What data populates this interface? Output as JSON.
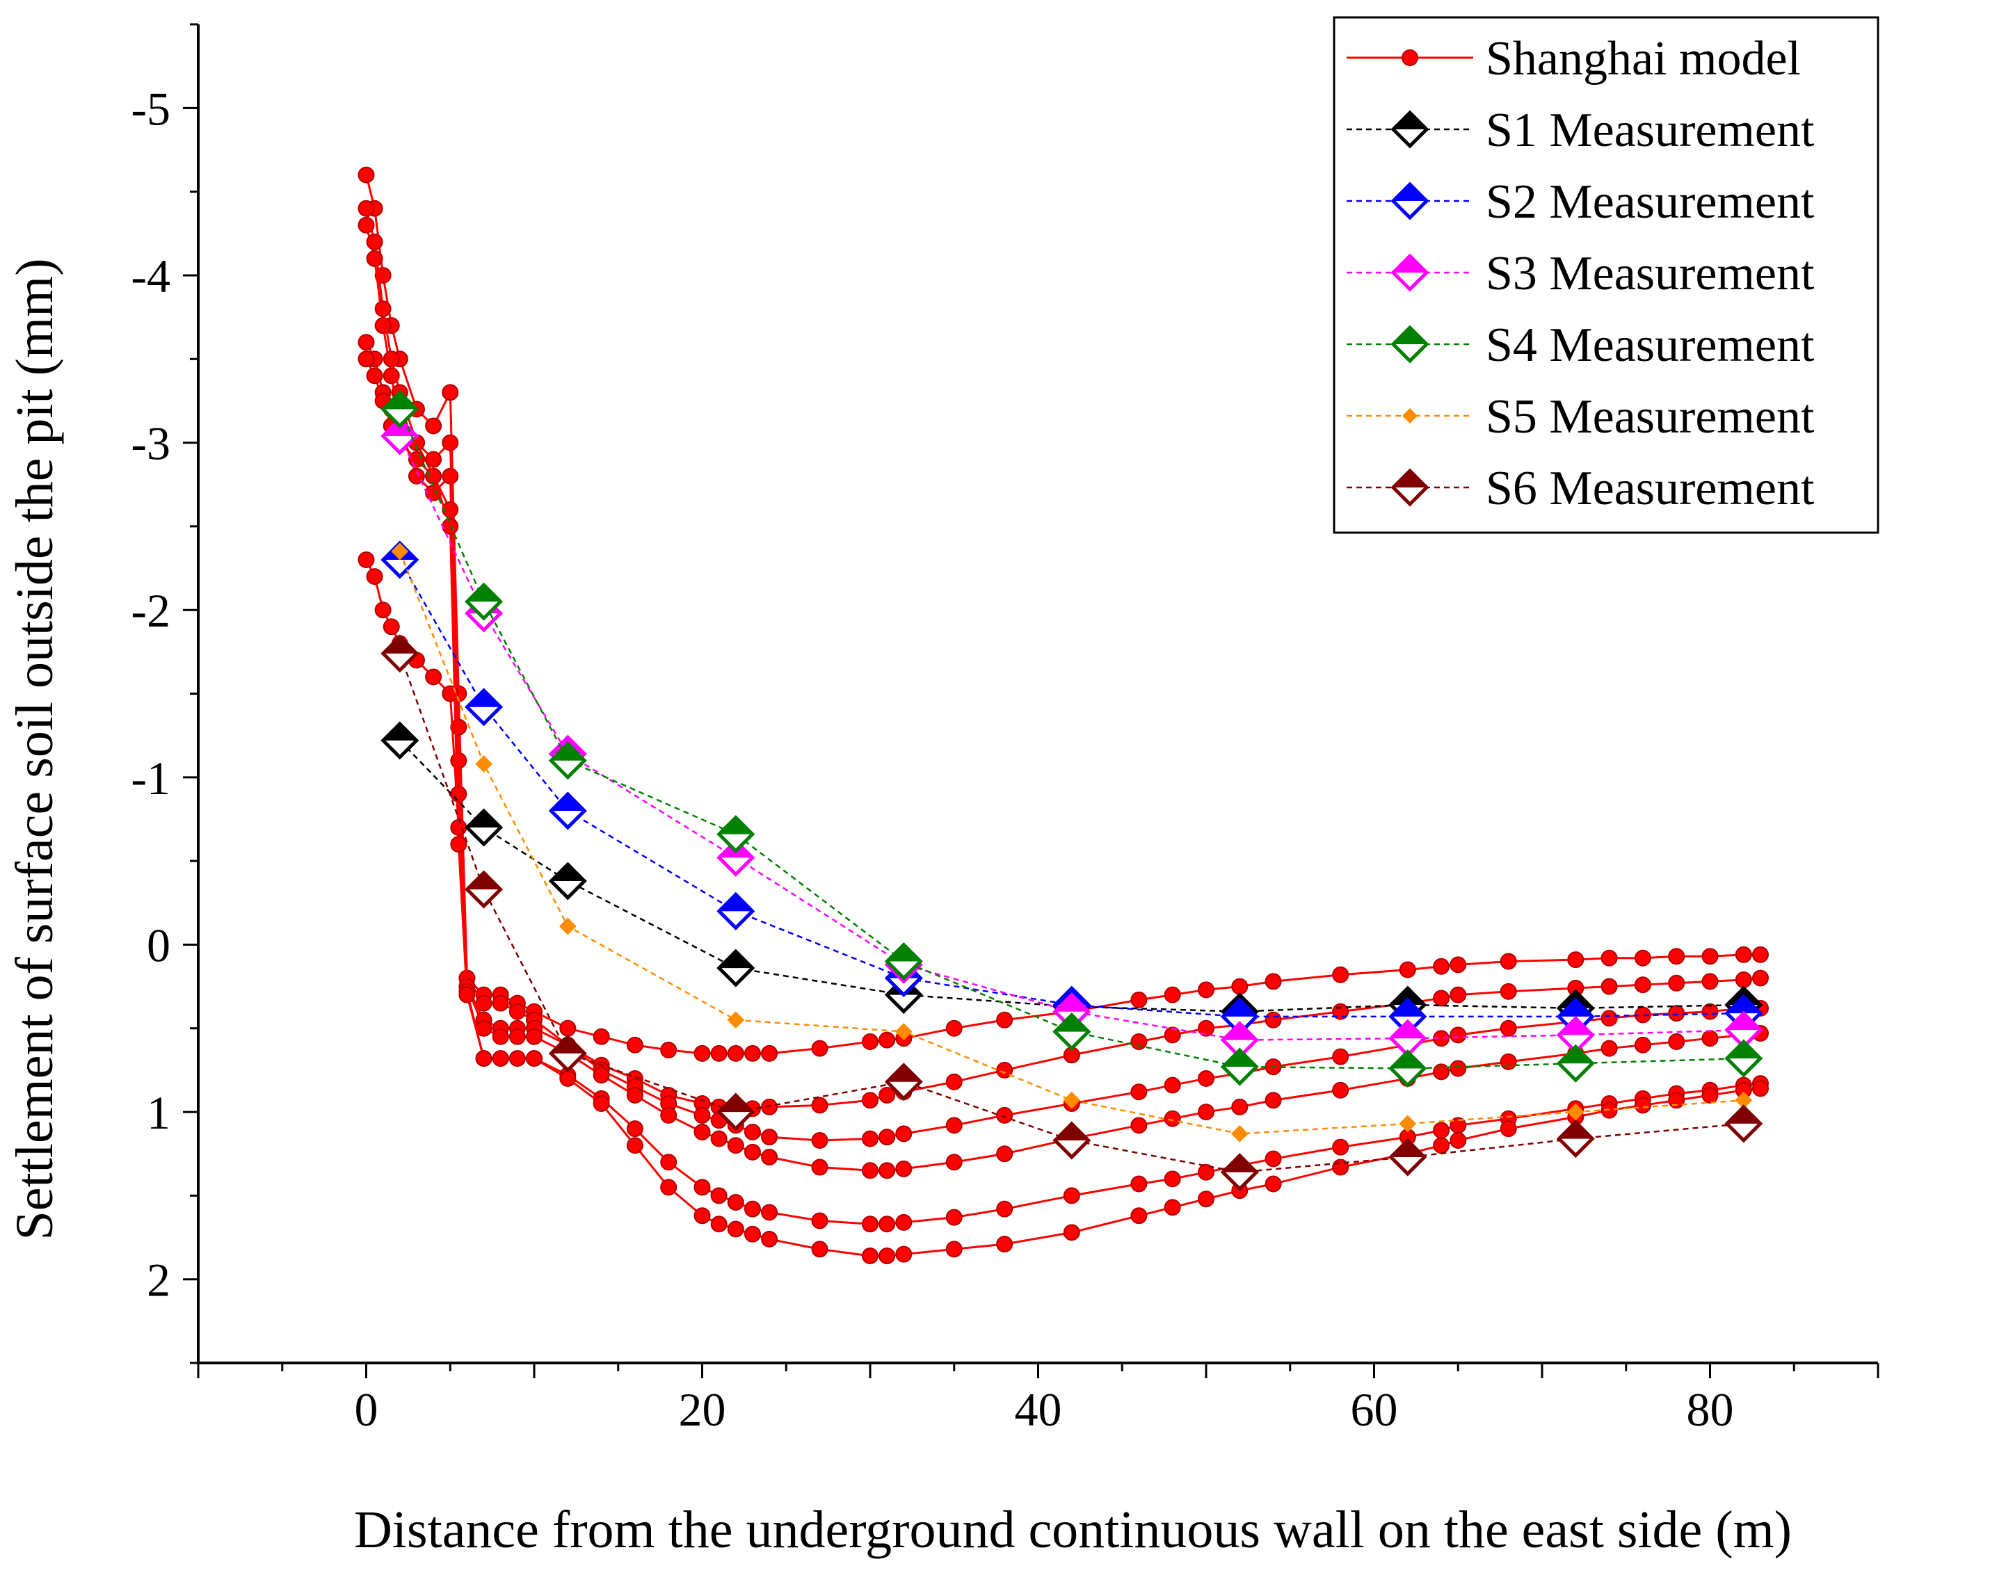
{
  "chart_data": {
    "type": "line",
    "xlabel": "Distance from the underground continuous wall on the east side (m)",
    "ylabel": "Settlement of surface soil outside the pit (mm)",
    "xlim": [
      -10,
      90
    ],
    "ylim": [
      2.5,
      -5.5
    ],
    "y_inverted": true,
    "x_ticks": [
      0,
      20,
      40,
      60,
      80
    ],
    "x_tick_labels": [
      "0",
      "20",
      "40",
      "60",
      "80"
    ],
    "y_ticks": [
      -5,
      -4,
      -3,
      -2,
      -1,
      0,
      1,
      2
    ],
    "y_tick_labels": [
      "-5",
      "-4",
      "-3",
      "-2",
      "-1",
      "0",
      "1",
      "2"
    ],
    "grid": false,
    "legend_position": "top-right",
    "legend": [
      {
        "label": "Shanghai model",
        "color": "#ff0000",
        "marker": "dot",
        "line": "solid"
      },
      {
        "label": "S1 Measurement",
        "color": "#000000",
        "marker": "diamond",
        "line": "dashed"
      },
      {
        "label": "S2 Measurement",
        "color": "#0000ff",
        "marker": "diamond",
        "line": "dashed"
      },
      {
        "label": "S3 Measurement",
        "color": "#ff00ff",
        "marker": "diamond",
        "line": "dashed"
      },
      {
        "label": "S4 Measurement",
        "color": "#008000",
        "marker": "diamond",
        "line": "dashed"
      },
      {
        "label": "S5 Measurement",
        "color": "#ff8c00",
        "marker": "small-diamond",
        "line": "dashed"
      },
      {
        "label": "S6 Measurement",
        "color": "#800000",
        "marker": "diamond",
        "line": "dashed"
      }
    ],
    "model_series": [
      {
        "name": "Shanghai model",
        "x": [
          0,
          0.5,
          1,
          1.5,
          2,
          3,
          4,
          5,
          5.5,
          6,
          7,
          8,
          9,
          10,
          12,
          14,
          16,
          18,
          20,
          21,
          22,
          23,
          24,
          27,
          30,
          31,
          32,
          35,
          38,
          42,
          46,
          48,
          50,
          52,
          54,
          58,
          62,
          64,
          65,
          68,
          72,
          74,
          76,
          78,
          80,
          82,
          83
        ],
        "y": [
          -4.6,
          -4.4,
          -4.0,
          -3.7,
          -3.5,
          -3.2,
          -3.1,
          -3.3,
          -1.5,
          0.2,
          0.3,
          0.3,
          0.35,
          0.4,
          0.5,
          0.55,
          0.6,
          0.63,
          0.65,
          0.65,
          0.65,
          0.65,
          0.65,
          0.62,
          0.58,
          0.57,
          0.56,
          0.5,
          0.45,
          0.4,
          0.33,
          0.3,
          0.27,
          0.25,
          0.22,
          0.18,
          0.15,
          0.13,
          0.12,
          0.1,
          0.09,
          0.08,
          0.08,
          0.07,
          0.07,
          0.06,
          0.06
        ]
      },
      {
        "name": "Shanghai model",
        "x": [
          0,
          0.5,
          1,
          1.5,
          2,
          3,
          4,
          5,
          5.5,
          6,
          7,
          8,
          9,
          10,
          12,
          14,
          16,
          18,
          20,
          21,
          22,
          23,
          24,
          27,
          30,
          31,
          32,
          35,
          38,
          42,
          46,
          48,
          50,
          52,
          54,
          58,
          62,
          64,
          65,
          68,
          72,
          74,
          76,
          78,
          80,
          82,
          83
        ],
        "y": [
          -4.3,
          -4.1,
          -3.7,
          -3.4,
          -3.1,
          -2.8,
          -2.7,
          -2.8,
          -1.1,
          0.2,
          0.35,
          0.35,
          0.4,
          0.45,
          0.6,
          0.72,
          0.8,
          0.9,
          0.95,
          0.97,
          0.98,
          0.98,
          0.97,
          0.96,
          0.93,
          0.9,
          0.88,
          0.82,
          0.75,
          0.66,
          0.58,
          0.54,
          0.5,
          0.48,
          0.45,
          0.4,
          0.35,
          0.32,
          0.3,
          0.28,
          0.26,
          0.25,
          0.24,
          0.23,
          0.22,
          0.21,
          0.2
        ]
      },
      {
        "name": "Shanghai model",
        "x": [
          0,
          0.5,
          1,
          1.5,
          2,
          3,
          4,
          5,
          5.5,
          6,
          7,
          8,
          9,
          10,
          12,
          14,
          16,
          18,
          20,
          21,
          22,
          23,
          24,
          27,
          30,
          31,
          32,
          35,
          38,
          42,
          46,
          48,
          50,
          52,
          54,
          58,
          62,
          64,
          65,
          68,
          72,
          74,
          76,
          78,
          80,
          82,
          83
        ],
        "y": [
          -3.6,
          -3.5,
          -3.3,
          -3.2,
          -3.1,
          -3.0,
          -2.8,
          -2.6,
          -0.9,
          0.25,
          0.45,
          0.5,
          0.5,
          0.5,
          0.6,
          0.75,
          0.85,
          0.95,
          1.02,
          1.05,
          1.08,
          1.12,
          1.15,
          1.17,
          1.16,
          1.15,
          1.13,
          1.08,
          1.02,
          0.95,
          0.88,
          0.84,
          0.8,
          0.77,
          0.73,
          0.67,
          0.6,
          0.56,
          0.54,
          0.5,
          0.46,
          0.44,
          0.42,
          0.41,
          0.4,
          0.38,
          0.38
        ]
      },
      {
        "name": "Shanghai model",
        "x": [
          0,
          0.5,
          1,
          1.5,
          2,
          3,
          4,
          5,
          5.5,
          6,
          7,
          8,
          9,
          10,
          12,
          14,
          16,
          18,
          20,
          21,
          22,
          23,
          24,
          27,
          30,
          31,
          32,
          35,
          38,
          42,
          46,
          48,
          50,
          52,
          54,
          58,
          62,
          64,
          65,
          68,
          72,
          74,
          76,
          78,
          80,
          82,
          83
        ],
        "y": [
          -4.4,
          -4.2,
          -3.8,
          -3.5,
          -3.3,
          -3.0,
          -2.9,
          -3.0,
          -1.3,
          0.25,
          0.5,
          0.55,
          0.55,
          0.55,
          0.65,
          0.78,
          0.9,
          1.02,
          1.12,
          1.16,
          1.2,
          1.24,
          1.27,
          1.33,
          1.35,
          1.35,
          1.34,
          1.3,
          1.25,
          1.16,
          1.08,
          1.04,
          1.0,
          0.97,
          0.93,
          0.87,
          0.8,
          0.76,
          0.74,
          0.7,
          0.65,
          0.62,
          0.6,
          0.58,
          0.56,
          0.54,
          0.53
        ]
      },
      {
        "name": "Shanghai model",
        "x": [
          0,
          0.5,
          1,
          1.5,
          2,
          3,
          4,
          5,
          5.5,
          6,
          7,
          8,
          9,
          10,
          12,
          14,
          16,
          18,
          20,
          21,
          22,
          23,
          24,
          27,
          30,
          31,
          32,
          35,
          38,
          42,
          46,
          48,
          50,
          52,
          54,
          58,
          62,
          64,
          65,
          68,
          72,
          74,
          76,
          78,
          80,
          82,
          83
        ],
        "y": [
          -2.3,
          -2.2,
          -2.0,
          -1.9,
          -1.8,
          -1.7,
          -1.6,
          -1.5,
          -0.7,
          0.28,
          0.68,
          0.68,
          0.68,
          0.68,
          0.78,
          0.92,
          1.1,
          1.3,
          1.45,
          1.5,
          1.54,
          1.58,
          1.6,
          1.65,
          1.67,
          1.67,
          1.66,
          1.63,
          1.58,
          1.5,
          1.43,
          1.4,
          1.36,
          1.32,
          1.28,
          1.21,
          1.15,
          1.11,
          1.08,
          1.04,
          0.98,
          0.95,
          0.92,
          0.89,
          0.87,
          0.84,
          0.83
        ]
      },
      {
        "name": "Shanghai model",
        "x": [
          0,
          0.5,
          1,
          1.5,
          2,
          3,
          4,
          5,
          5.5,
          6,
          7,
          8,
          9,
          10,
          12,
          14,
          16,
          18,
          20,
          21,
          22,
          23,
          24,
          27,
          30,
          31,
          32,
          35,
          38,
          42,
          46,
          48,
          50,
          52,
          54,
          58,
          62,
          64,
          65,
          68,
          72,
          74,
          76,
          78,
          80,
          82,
          83
        ],
        "y": [
          -3.5,
          -3.4,
          -3.25,
          -3.1,
          -3.0,
          -2.9,
          -2.8,
          -2.5,
          -0.6,
          0.3,
          0.68,
          0.68,
          0.68,
          0.68,
          0.8,
          0.95,
          1.2,
          1.45,
          1.62,
          1.67,
          1.7,
          1.73,
          1.76,
          1.82,
          1.86,
          1.86,
          1.85,
          1.82,
          1.79,
          1.72,
          1.62,
          1.57,
          1.52,
          1.47,
          1.43,
          1.33,
          1.25,
          1.2,
          1.17,
          1.1,
          1.03,
          0.99,
          0.96,
          0.93,
          0.9,
          0.87,
          0.86
        ]
      }
    ],
    "series": [
      {
        "name": "S1 Measurement",
        "x": [
          2,
          7,
          12,
          22,
          32,
          42,
          52,
          62,
          72,
          82
        ],
        "y": [
          -1.22,
          -0.7,
          -0.38,
          0.14,
          0.3,
          0.37,
          0.4,
          0.36,
          0.38,
          0.36
        ]
      },
      {
        "name": "S2 Measurement",
        "x": [
          2,
          7,
          12,
          22,
          32,
          42,
          52,
          62,
          72,
          82
        ],
        "y": [
          -2.3,
          -1.42,
          -0.8,
          -0.2,
          0.2,
          0.36,
          0.43,
          0.43,
          0.43,
          0.41
        ]
      },
      {
        "name": "S3 Measurement",
        "x": [
          2,
          7,
          12,
          22,
          32,
          42,
          52,
          62,
          72,
          82
        ],
        "y": [
          -3.04,
          -1.98,
          -1.14,
          -0.52,
          0.12,
          0.4,
          0.57,
          0.56,
          0.54,
          0.51
        ]
      },
      {
        "name": "S4 Measurement",
        "x": [
          2,
          7,
          12,
          22,
          32,
          42,
          52,
          62,
          72,
          82
        ],
        "y": [
          -3.2,
          -2.05,
          -1.1,
          -0.66,
          0.1,
          0.52,
          0.73,
          0.74,
          0.71,
          0.68
        ]
      },
      {
        "name": "S5 Measurement",
        "x": [
          2,
          7,
          12,
          22,
          32,
          42,
          52,
          62,
          72,
          82
        ],
        "y": [
          -2.35,
          -1.08,
          -0.11,
          0.45,
          0.52,
          0.93,
          1.13,
          1.07,
          1.0,
          0.93
        ]
      },
      {
        "name": "S6 Measurement",
        "x": [
          2,
          7,
          12,
          22,
          32,
          42,
          52,
          62,
          72,
          82
        ],
        "y": [
          -1.74,
          -0.33,
          0.65,
          1.0,
          0.82,
          1.17,
          1.36,
          1.27,
          1.16,
          1.07
        ]
      }
    ]
  }
}
